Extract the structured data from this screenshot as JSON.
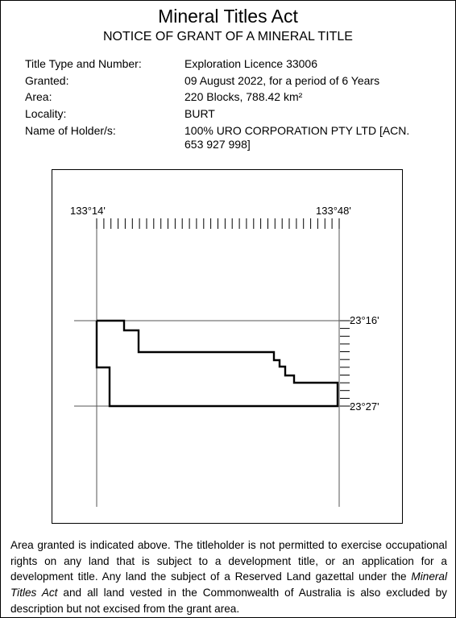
{
  "header": {
    "title": "Mineral Titles Act",
    "subtitle": "NOTICE OF GRANT OF A  MINERAL TITLE"
  },
  "details": [
    {
      "label": "Title Type and Number:",
      "value": "Exploration Licence 33006"
    },
    {
      "label": "Granted:",
      "value": "09 August 2022, for a period of 6 Years"
    },
    {
      "label": "Area:",
      "value": "220 Blocks, 788.42 km²"
    },
    {
      "label": "Locality:",
      "value": "BURT"
    },
    {
      "label": "Name of Holder/s:",
      "value": "100% URO CORPORATION PTY LTD [ACN.",
      "value2": "653 927 998]"
    }
  ],
  "map": {
    "lon_west": "133°14'",
    "lon_east": "133°48'",
    "lat_north": "23°16'",
    "lat_south": "23°27'"
  },
  "note": {
    "part1": "Area granted is indicated above. The titleholder is not permitted to exercise occupational rights on any land that is subject to a development title, or an application for a development title. Any land the subject of a Reserved Land gazettal under the ",
    "italic": "Mineral Titles Act",
    "part2": " and all land vested in the Commonwealth of Australia is also excluded by description but not excised from the grant area."
  }
}
